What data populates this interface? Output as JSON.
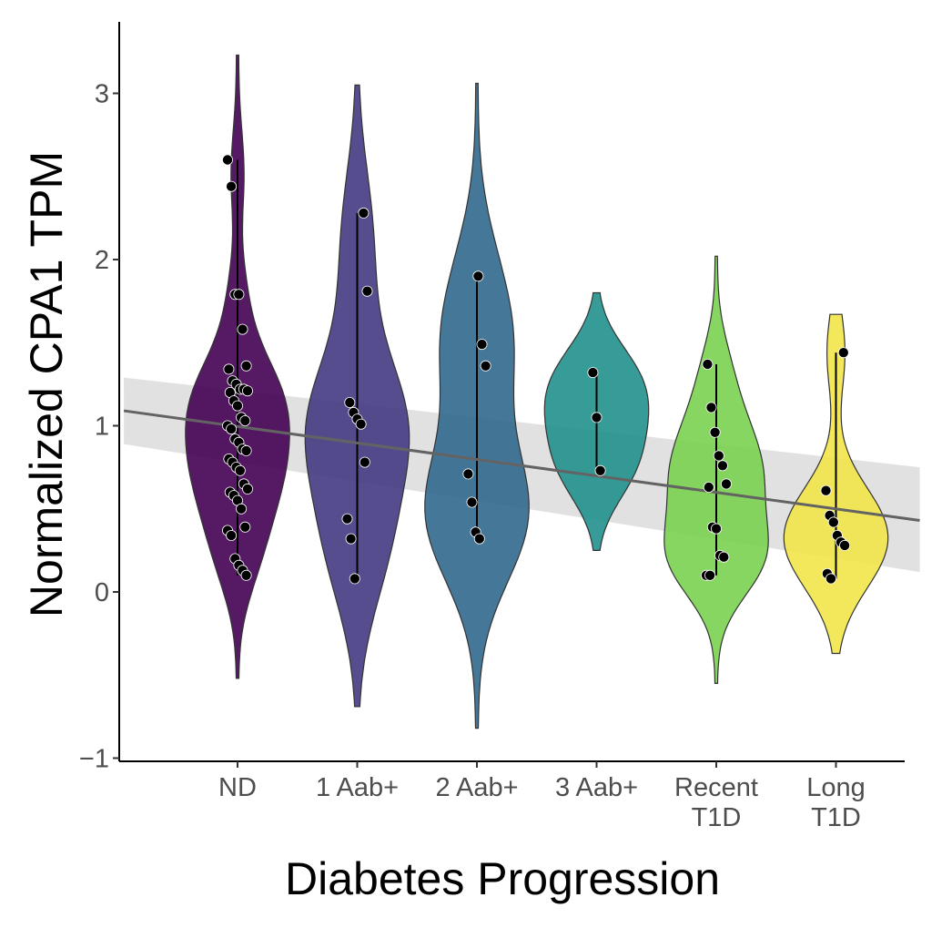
{
  "chart_data": {
    "type": "violin",
    "xlabel": "Diabetes Progression",
    "ylabel": "Normalized CPA1 TPM",
    "ylim": [
      -1.02,
      3.43
    ],
    "yticks": [
      -1,
      0,
      1,
      2,
      3
    ],
    "grid": false,
    "legend": "none",
    "categories": [
      {
        "label": [
          "ND"
        ],
        "color": "#440154",
        "points": [
          2.6,
          2.44,
          1.79,
          1.79,
          1.58,
          1.36,
          1.34,
          1.27,
          1.25,
          1.22,
          1.22,
          1.21,
          1.2,
          1.15,
          1.12,
          1.05,
          1.03,
          1.0,
          0.98,
          0.92,
          0.9,
          0.86,
          0.85,
          0.8,
          0.78,
          0.75,
          0.73,
          0.65,
          0.62,
          0.6,
          0.58,
          0.55,
          0.5,
          0.39,
          0.37,
          0.34,
          0.2,
          0.16,
          0.13,
          0.1
        ],
        "min": -0.52,
        "max": 3.23
      },
      {
        "label": [
          "1 Aab+"
        ],
        "color": "#443A83",
        "points": [
          2.28,
          1.81,
          1.14,
          1.08,
          1.04,
          1.01,
          0.78,
          0.44,
          0.32,
          0.08
        ],
        "min": -0.69,
        "max": 3.05
      },
      {
        "label": [
          "2 Aab+"
        ],
        "color": "#31688E",
        "points": [
          1.9,
          1.49,
          1.36,
          0.71,
          0.54,
          0.36,
          0.32
        ],
        "min": -0.82,
        "max": 3.06
      },
      {
        "label": [
          "3 Aab+"
        ],
        "color": "#21908C",
        "points": [
          1.32,
          1.05,
          0.73
        ],
        "min": 0.25,
        "max": 1.8
      },
      {
        "label": [
          "Recent",
          "T1D"
        ],
        "color": "#7AD151",
        "points": [
          1.37,
          1.11,
          0.96,
          0.82,
          0.76,
          0.65,
          0.63,
          0.39,
          0.38,
          0.22,
          0.21,
          0.1,
          0.1
        ],
        "min": -0.55,
        "max": 2.02
      },
      {
        "label": [
          "Long",
          "T1D"
        ],
        "color": "#F2E54A",
        "points": [
          1.44,
          0.61,
          0.46,
          0.42,
          0.34,
          0.3,
          0.28,
          0.11,
          0.08
        ],
        "min": -0.37,
        "max": 1.67
      }
    ],
    "regression": {
      "x_start": 0.05,
      "x_end": 6.7,
      "y_start": 1.09,
      "y_end": 0.43,
      "ci_start": [
        0.89,
        1.29
      ],
      "ci_end": [
        0.12,
        0.75
      ]
    }
  }
}
